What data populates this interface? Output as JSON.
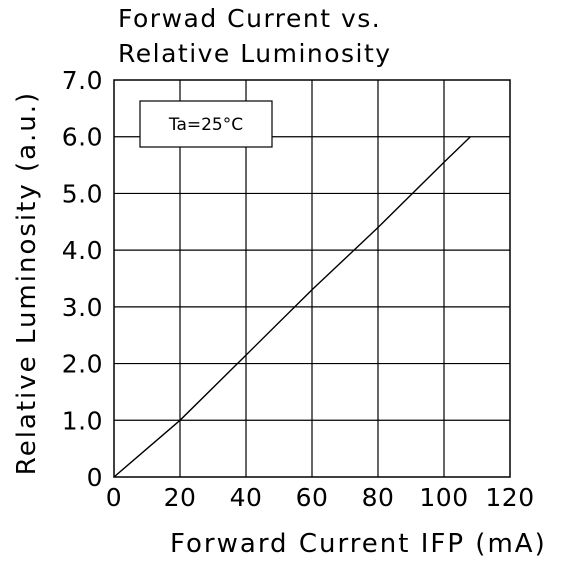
{
  "chart_data": {
    "type": "line",
    "title_lines": [
      "Forwad Current vs.",
      "Relative Luminosity"
    ],
    "xlabel": "Forward Current IFP (mA)",
    "ylabel": "Relative Luminosity (a.u.)",
    "xlim": [
      0,
      120
    ],
    "ylim": [
      0,
      7
    ],
    "x_ticks": [
      "0",
      "20",
      "40",
      "60",
      "80",
      "100",
      "120"
    ],
    "y_ticks": [
      "0",
      "1.0",
      "2.0",
      "3.0",
      "4.0",
      "5.0",
      "6.0",
      "7.0"
    ],
    "grid": true,
    "annotation": "Ta=25°C",
    "series": [
      {
        "x": [
          0,
          20,
          40,
          60,
          80,
          100,
          108
        ],
        "y": [
          0,
          1.0,
          2.15,
          3.3,
          4.4,
          5.55,
          6.0
        ]
      }
    ]
  }
}
